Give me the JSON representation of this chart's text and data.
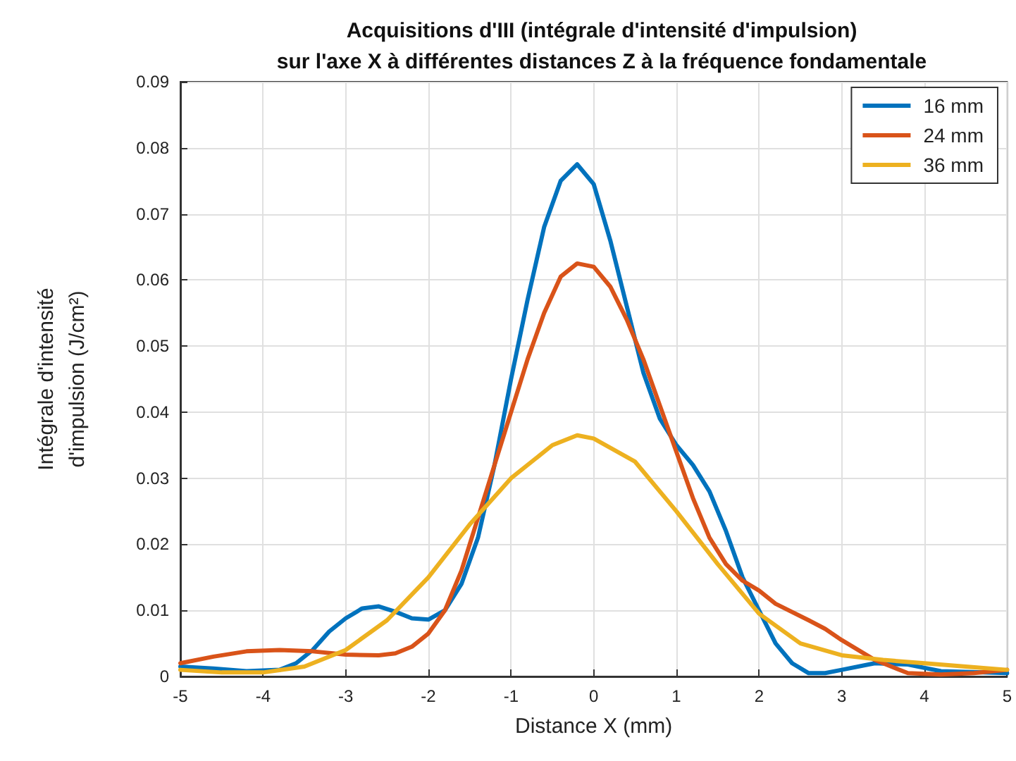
{
  "chart_data": {
    "type": "line",
    "title": "Acquisitions d'III (intégrale d'intensité d'impulsion)\nsur l'axe X à différentes distances Z à la fréquence fondamentale",
    "xlabel": "Distance X (mm)",
    "ylabel": "Intégrale d'intensité\nd'impulsion (J/cm²)",
    "series": [
      {
        "name": "16 mm",
        "color": "#0072bd",
        "x": [
          -5,
          -4.6,
          -4.2,
          -3.8,
          -3.6,
          -3.4,
          -3.2,
          -3.0,
          -2.8,
          -2.6,
          -2.4,
          -2.2,
          -2.0,
          -1.8,
          -1.6,
          -1.4,
          -1.2,
          -1.0,
          -0.8,
          -0.6,
          -0.4,
          -0.2,
          0,
          0.2,
          0.4,
          0.6,
          0.8,
          1.0,
          1.2,
          1.4,
          1.6,
          1.8,
          2.0,
          2.2,
          2.4,
          2.6,
          2.8,
          3.0,
          3.4,
          3.8,
          4.2,
          5
        ],
        "values": [
          0.0015,
          0.0012,
          0.0008,
          0.001,
          0.002,
          0.004,
          0.0068,
          0.0088,
          0.0103,
          0.0106,
          0.0098,
          0.0088,
          0.0086,
          0.01,
          0.014,
          0.021,
          0.032,
          0.045,
          0.057,
          0.068,
          0.075,
          0.0775,
          0.0745,
          0.066,
          0.056,
          0.046,
          0.039,
          0.035,
          0.032,
          0.028,
          0.022,
          0.015,
          0.01,
          0.005,
          0.002,
          0.0005,
          0.0005,
          0.001,
          0.002,
          0.0018,
          0.0008,
          0.0005
        ]
      },
      {
        "name": "24 mm",
        "color": "#d95319",
        "x": [
          -5,
          -4.6,
          -4.2,
          -3.8,
          -3.4,
          -3.0,
          -2.6,
          -2.4,
          -2.2,
          -2.0,
          -1.8,
          -1.6,
          -1.4,
          -1.2,
          -1.0,
          -0.8,
          -0.6,
          -0.4,
          -0.2,
          0,
          0.2,
          0.4,
          0.6,
          0.8,
          1.0,
          1.2,
          1.4,
          1.6,
          1.8,
          2.0,
          2.2,
          2.6,
          2.8,
          3.0,
          3.4,
          3.8,
          4.2,
          4.6,
          5
        ],
        "values": [
          0.002,
          0.003,
          0.0038,
          0.004,
          0.0038,
          0.0033,
          0.0032,
          0.0035,
          0.0045,
          0.0065,
          0.01,
          0.016,
          0.024,
          0.032,
          0.04,
          0.048,
          0.055,
          0.0605,
          0.0625,
          0.062,
          0.059,
          0.054,
          0.048,
          0.041,
          0.034,
          0.027,
          0.021,
          0.017,
          0.0145,
          0.013,
          0.011,
          0.0085,
          0.0072,
          0.0055,
          0.0025,
          0.0005,
          0.0003,
          0.0005,
          0.001
        ]
      },
      {
        "name": "36 mm",
        "color": "#edb120",
        "x": [
          -5,
          -4.5,
          -4.0,
          -3.5,
          -3.0,
          -2.5,
          -2.0,
          -1.5,
          -1.0,
          -0.5,
          -0.2,
          0,
          0.5,
          1.0,
          1.5,
          2.0,
          2.5,
          3.0,
          3.5,
          4.0,
          4.5,
          5
        ],
        "values": [
          0.001,
          0.0006,
          0.0006,
          0.0015,
          0.004,
          0.0085,
          0.015,
          0.023,
          0.03,
          0.035,
          0.0365,
          0.036,
          0.0325,
          0.025,
          0.017,
          0.0095,
          0.005,
          0.0032,
          0.0025,
          0.002,
          0.0015,
          0.001
        ]
      }
    ],
    "xlim": [
      -5,
      5
    ],
    "xticks": [
      -5,
      -4,
      -3,
      -2,
      -1,
      0,
      1,
      2,
      3,
      4,
      5
    ],
    "ylim": [
      0,
      0.09
    ],
    "yticks": [
      0,
      0.01,
      0.02,
      0.03,
      0.04,
      0.05,
      0.06,
      0.07,
      0.08,
      0.09
    ],
    "grid": true,
    "legend": "top right",
    "marker": "none",
    "line_style": "solid"
  }
}
